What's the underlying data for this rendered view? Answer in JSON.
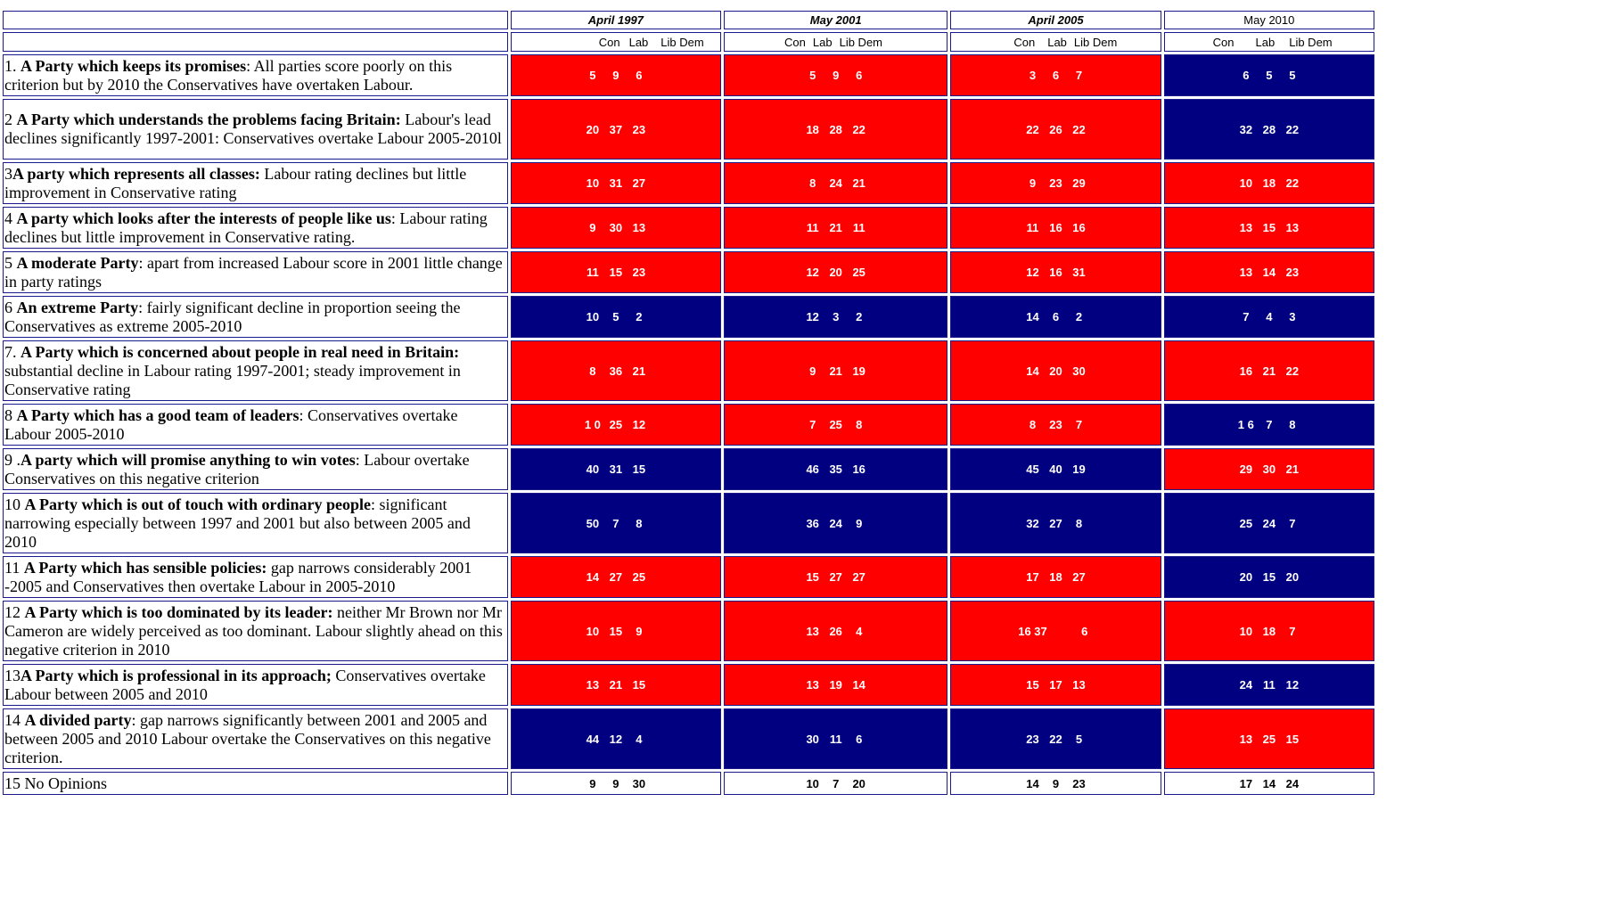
{
  "headers": {
    "periods": [
      {
        "label": "April 1997",
        "style": "bi"
      },
      {
        "label": "May 2001",
        "style": "bi"
      },
      {
        "label": "April 2005",
        "style": "bi"
      },
      {
        "label": "May 2010",
        "style": "plain"
      }
    ],
    "parties": [
      "Con",
      "Lab",
      "Lib Dem"
    ]
  },
  "colors": {
    "red": "#ff0000",
    "blue": "#000080"
  },
  "rows": [
    {
      "num": "1. ",
      "bold": "A Party which keeps its promises",
      "rest": ": All parties score poorly on this criterion but by 2010 the Conservatives have overtaken Labour.",
      "h": 47,
      "cells": [
        {
          "v": [
            "5",
            "9",
            "6"
          ],
          "c": "red"
        },
        {
          "v": [
            "5",
            "9",
            "6"
          ],
          "c": "red"
        },
        {
          "v": [
            "3",
            "6",
            "7"
          ],
          "c": "red"
        },
        {
          "v": [
            "6",
            "5",
            "5"
          ],
          "c": "blue"
        }
      ]
    },
    {
      "num": "2 ",
      "bold": "A Party which understands the problems facing Britain:",
      "rest": " Labour's lead declines significantly 1997-2001: Conservatives overtake Labour 2005-2010l",
      "h": 68,
      "cells": [
        {
          "v": [
            "20",
            "37",
            "23"
          ],
          "c": "red"
        },
        {
          "v": [
            "18",
            "28",
            "22"
          ],
          "c": "red"
        },
        {
          "v": [
            "22",
            "26",
            "22"
          ],
          "c": "red"
        },
        {
          "v": [
            "32",
            "28",
            "22"
          ],
          "c": "blue"
        }
      ]
    },
    {
      "num": "3",
      "bold": "A party which represents all classes:",
      "rest": " Labour rating declines but little improvement in Conservative rating",
      "h": 47,
      "cells": [
        {
          "v": [
            "10",
            "31",
            "27"
          ],
          "c": "red"
        },
        {
          "v": [
            "8",
            "24",
            "21"
          ],
          "c": "red"
        },
        {
          "v": [
            "9",
            "23",
            "29"
          ],
          "c": "red"
        },
        {
          "v": [
            "10",
            "18",
            "22"
          ],
          "c": "red"
        }
      ]
    },
    {
      "num": "4 ",
      "bold": "A party which looks after the interests of people like us",
      "rest": ": Labour rating declines but little improvement in Conservative rating.",
      "h": 47,
      "cells": [
        {
          "v": [
            "9",
            "30",
            "13"
          ],
          "c": "red"
        },
        {
          "v": [
            "11",
            "21",
            "11"
          ],
          "c": "red"
        },
        {
          "v": [
            "11",
            "16",
            "16"
          ],
          "c": "red"
        },
        {
          "v": [
            "13",
            "15",
            "13"
          ],
          "c": "red"
        }
      ]
    },
    {
      "num": "5 ",
      "bold": "A moderate Party",
      "rest": ": apart from increased Labour score in 2001 little change in party ratings",
      "h": 47,
      "cells": [
        {
          "v": [
            "11",
            "15",
            "23"
          ],
          "c": "red"
        },
        {
          "v": [
            "12",
            "20",
            "25"
          ],
          "c": "red"
        },
        {
          "v": [
            "12",
            "16",
            "31"
          ],
          "c": "red"
        },
        {
          "v": [
            "13",
            "14",
            "23"
          ],
          "c": "red"
        }
      ]
    },
    {
      "num": "6 ",
      "bold": "An extreme Party",
      "rest": ": fairly significant decline in proportion seeing the Conservatives as extreme 2005-2010",
      "h": 47,
      "cells": [
        {
          "v": [
            "10",
            "5",
            "2"
          ],
          "c": "blue"
        },
        {
          "v": [
            "12",
            "3",
            "2"
          ],
          "c": "blue"
        },
        {
          "v": [
            "14",
            "6",
            "2"
          ],
          "c": "blue"
        },
        {
          "v": [
            "7",
            "4",
            "3"
          ],
          "c": "blue"
        }
      ]
    },
    {
      "num": "7. ",
      "bold": "A Party which is concerned about people in real need in Britain:",
      "rest": " substantial decline in Labour rating 1997-2001; steady improvement in Conservative rating",
      "h": 68,
      "cells": [
        {
          "v": [
            "8",
            "36",
            "21"
          ],
          "c": "red"
        },
        {
          "v": [
            "9",
            "21",
            "19"
          ],
          "c": "red"
        },
        {
          "v": [
            "14",
            "20",
            "30"
          ],
          "c": "red"
        },
        {
          "v": [
            "16",
            "21",
            "22"
          ],
          "c": "red"
        }
      ]
    },
    {
      "num": "8 ",
      "bold": "A Party which has a good team of leaders",
      "rest": ": Conservatives overtake Labour 2005-2010",
      "h": 47,
      "cells": [
        {
          "v": [
            "1 0",
            "25",
            "12"
          ],
          "c": "red"
        },
        {
          "v": [
            "7",
            "25",
            "8"
          ],
          "c": "red"
        },
        {
          "v": [
            "8",
            "23",
            "7"
          ],
          "c": "red"
        },
        {
          "v": [
            "1 6",
            "7",
            "8"
          ],
          "c": "blue"
        }
      ]
    },
    {
      "num": "9 .",
      "bold": "A party which will promise anything to win votes",
      "rest": ": Labour overtake Conservatives on this negative criterion",
      "h": 47,
      "cells": [
        {
          "v": [
            "40",
            "31",
            "15"
          ],
          "c": "blue"
        },
        {
          "v": [
            "46",
            "35",
            "16"
          ],
          "c": "blue"
        },
        {
          "v": [
            "45",
            "40",
            "19"
          ],
          "c": "blue"
        },
        {
          "v": [
            "29",
            "30",
            "21"
          ],
          "c": "red"
        }
      ]
    },
    {
      "num": "10 ",
      "bold": "A Party which is out of touch with ordinary people",
      "rest": ": significant narrowing especially between 1997 and 2001 but also between 2005 and 2010",
      "h": 68,
      "cells": [
        {
          "v": [
            "50",
            "7",
            "8"
          ],
          "c": "blue"
        },
        {
          "v": [
            "36",
            "24",
            "9"
          ],
          "c": "blue"
        },
        {
          "v": [
            "32",
            "27",
            "8"
          ],
          "c": "blue"
        },
        {
          "v": [
            "25",
            "24",
            "7"
          ],
          "c": "blue"
        }
      ]
    },
    {
      "num": "11 ",
      "bold": "A Party which has sensible policies:",
      "rest": " gap narrows considerably 2001 -2005 and Conservatives then overtake Labour in 2005-2010",
      "h": 47,
      "cells": [
        {
          "v": [
            "14",
            "27",
            "25"
          ],
          "c": "red"
        },
        {
          "v": [
            "15",
            "27",
            "27"
          ],
          "c": "red"
        },
        {
          "v": [
            "17",
            "18",
            "27"
          ],
          "c": "red"
        },
        {
          "v": [
            "20",
            "15",
            "20"
          ],
          "c": "blue"
        }
      ]
    },
    {
      "num": "12 ",
      "bold": "A Party which is too dominated by its leader:",
      "rest": " neither Mr Brown nor Mr Cameron are widely perceived as too dominant. Labour slightly ahead on this negative criterion in 2010",
      "h": 68,
      "cells": [
        {
          "v": [
            "10",
            "15",
            "9"
          ],
          "c": "red"
        },
        {
          "v": [
            "13",
            "26",
            "4"
          ],
          "c": "red"
        },
        {
          "v": [
            "16 37",
            "",
            "6"
          ],
          "c": "red"
        },
        {
          "v": [
            "10",
            "18",
            "7"
          ],
          "c": "red"
        }
      ]
    },
    {
      "num": "13",
      "bold": "A Party which is professional in its approach;",
      "rest": " Conservatives overtake Labour between 2005 and 2010",
      "h": 47,
      "cells": [
        {
          "v": [
            "13",
            "21",
            "15"
          ],
          "c": "red"
        },
        {
          "v": [
            "13",
            "19",
            "14"
          ],
          "c": "red"
        },
        {
          "v": [
            "15",
            "17",
            "13"
          ],
          "c": "red"
        },
        {
          "v": [
            "24",
            "11",
            "12"
          ],
          "c": "blue"
        }
      ]
    },
    {
      "num": "14 ",
      "bold": "A divided party",
      "rest": ": gap narrows significantly between 2001 and 2005 and between 2005 and 2010 Labour overtake the Conservatives on this negative criterion.",
      "h": 68,
      "cells": [
        {
          "v": [
            "44",
            "12",
            "4"
          ],
          "c": "blue"
        },
        {
          "v": [
            "30",
            "11",
            "6"
          ],
          "c": "blue"
        },
        {
          "v": [
            "23",
            "22",
            "5"
          ],
          "c": "blue"
        },
        {
          "v": [
            "13",
            "25",
            "15"
          ],
          "c": "red"
        }
      ]
    },
    {
      "num": "15 No Opinions",
      "bold": "",
      "rest": "",
      "h": 26,
      "cells": [
        {
          "v": [
            "9",
            "9",
            "30"
          ],
          "c": "white"
        },
        {
          "v": [
            "10",
            "7",
            "20"
          ],
          "c": "white"
        },
        {
          "v": [
            "14",
            "9",
            "23"
          ],
          "c": "white"
        },
        {
          "v": [
            "17",
            "14",
            "24"
          ],
          "c": "white"
        }
      ]
    }
  ]
}
